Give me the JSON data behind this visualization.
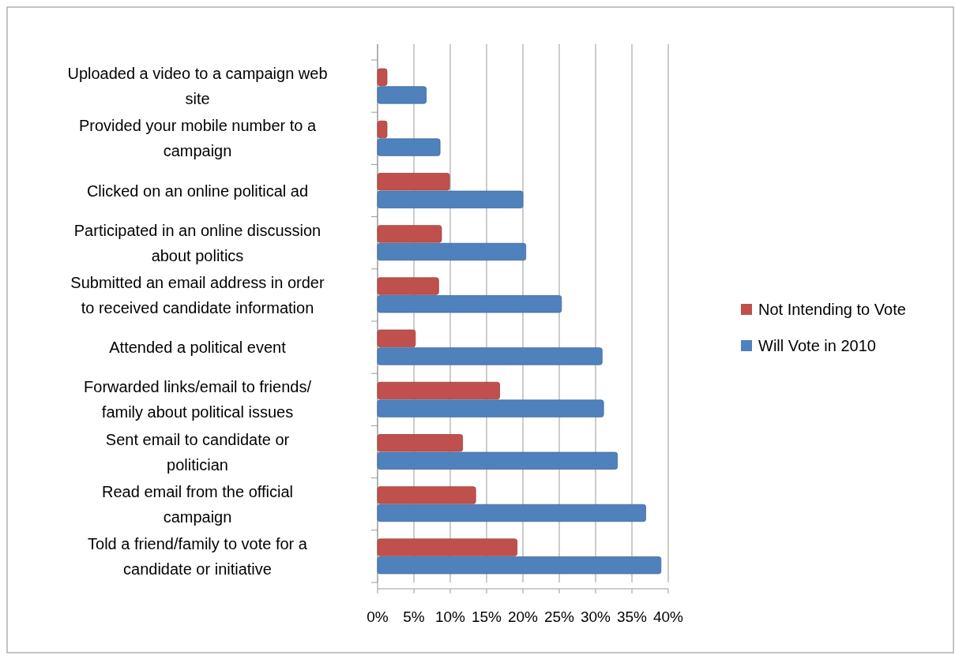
{
  "chart_data": {
    "type": "bar",
    "orientation": "horizontal",
    "categories": [
      "Uploaded a video to a campaign web site",
      "Provided your mobile number to a campaign",
      "Clicked on an online political ad",
      "Participated in an online discussion about politics",
      "Submitted an email address in order to received candidate information",
      "Attended a political event",
      "Forwarded links/email to friends/ family about political issues",
      "Sent email to candidate or politician",
      "Read email from the official campaign",
      "Told a friend/family to vote for a candidate or initiative"
    ],
    "series": [
      {
        "name": "Not Intending to Vote",
        "color": "#c0504d",
        "values": [
          1.3,
          1.3,
          9.9,
          8.8,
          8.4,
          5.2,
          16.8,
          11.7,
          13.5,
          19.2
        ]
      },
      {
        "name": "Will Vote in 2010",
        "color": "#4f81bd",
        "values": [
          6.7,
          8.6,
          20.0,
          20.4,
          25.3,
          30.9,
          31.1,
          33.0,
          36.9,
          39.0
        ]
      }
    ],
    "xlim": [
      0,
      40
    ],
    "xticks": [
      {
        "value": 0,
        "label": "0%"
      },
      {
        "value": 5,
        "label": "5%"
      },
      {
        "value": 10,
        "label": "10%"
      },
      {
        "value": 15,
        "label": "15%"
      },
      {
        "value": 20,
        "label": "20%"
      },
      {
        "value": 25,
        "label": "25%"
      },
      {
        "value": 30,
        "label": "30%"
      },
      {
        "value": 35,
        "label": "35%"
      },
      {
        "value": 40,
        "label": "40%"
      }
    ],
    "grid": "x",
    "legend": "right"
  }
}
